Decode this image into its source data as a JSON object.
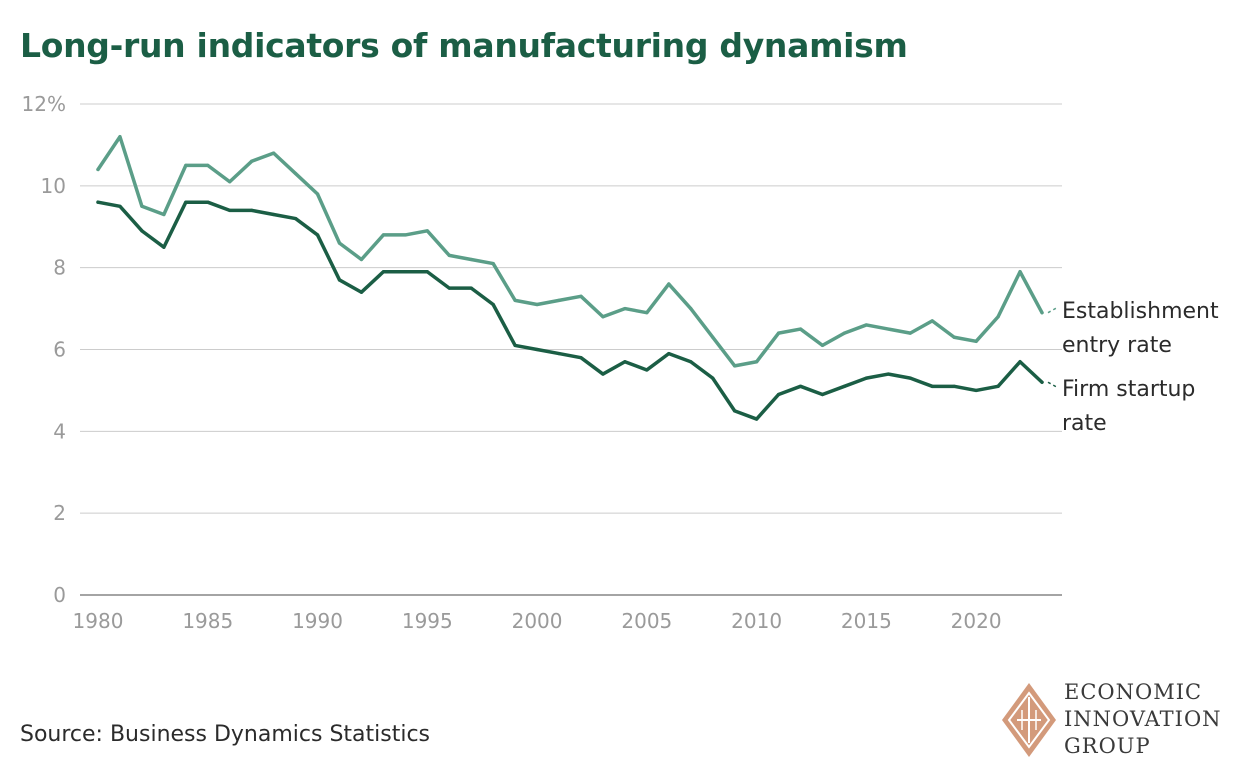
{
  "title": "Long-run indicators of manufacturing dynamism",
  "source": "Source: Business Dynamics Statistics",
  "logo": {
    "lines": [
      "ECONOMIC",
      "INNOVATION",
      "GROUP"
    ],
    "icon": "diamond-logo-icon"
  },
  "colors": {
    "title": "#1b5e45",
    "establishment": "#5b9e88",
    "firm": "#1b5e45",
    "grid": "#cccccc",
    "tick": "#9a9a9a",
    "logo": "#d39a7b"
  },
  "chart_data": {
    "type": "line",
    "title": "Long-run indicators of manufacturing dynamism",
    "xlabel": "",
    "ylabel": "",
    "xlim": [
      1980,
      2023
    ],
    "ylim": [
      0,
      12
    ],
    "grid": true,
    "x_ticks": [
      1980,
      1985,
      1990,
      1995,
      2000,
      2005,
      2010,
      2015,
      2020
    ],
    "y_ticks": [
      {
        "value": 0,
        "label": "0"
      },
      {
        "value": 2,
        "label": "2"
      },
      {
        "value": 4,
        "label": "4"
      },
      {
        "value": 6,
        "label": "6"
      },
      {
        "value": 8,
        "label": "8"
      },
      {
        "value": 10,
        "label": "10"
      },
      {
        "value": 12,
        "label": "12%"
      }
    ],
    "x": [
      1980,
      1981,
      1982,
      1983,
      1984,
      1985,
      1986,
      1987,
      1988,
      1989,
      1990,
      1991,
      1992,
      1993,
      1994,
      1995,
      1996,
      1997,
      1998,
      1999,
      2000,
      2001,
      2002,
      2003,
      2004,
      2005,
      2006,
      2007,
      2008,
      2009,
      2010,
      2011,
      2012,
      2013,
      2014,
      2015,
      2016,
      2017,
      2018,
      2019,
      2020,
      2021,
      2022,
      2023
    ],
    "series": [
      {
        "name": "Establishment entry rate",
        "label_lines": [
          "Establishment",
          "entry rate"
        ],
        "values": [
          10.4,
          11.2,
          9.5,
          9.3,
          10.5,
          10.5,
          10.1,
          10.6,
          10.8,
          10.3,
          9.8,
          8.6,
          8.2,
          8.8,
          8.8,
          8.9,
          8.3,
          8.2,
          8.1,
          7.2,
          7.1,
          7.2,
          7.3,
          6.8,
          7.0,
          6.9,
          7.6,
          7.0,
          6.3,
          5.6,
          5.7,
          6.4,
          6.5,
          6.1,
          6.4,
          6.6,
          6.5,
          6.4,
          6.7,
          6.3,
          6.2,
          6.8,
          7.9,
          6.9
        ]
      },
      {
        "name": "Firm startup rate",
        "label_lines": [
          "Firm startup",
          "rate"
        ],
        "values": [
          9.6,
          9.5,
          8.9,
          8.5,
          9.6,
          9.6,
          9.4,
          9.4,
          9.3,
          9.2,
          8.8,
          7.7,
          7.4,
          7.9,
          7.9,
          7.9,
          7.5,
          7.5,
          7.1,
          6.1,
          6.0,
          5.9,
          5.8,
          5.4,
          5.7,
          5.5,
          5.9,
          5.7,
          5.3,
          4.5,
          4.3,
          4.9,
          5.1,
          4.9,
          5.1,
          5.3,
          5.4,
          5.3,
          5.1,
          5.1,
          5.0,
          5.1,
          5.7,
          5.2
        ]
      }
    ]
  }
}
